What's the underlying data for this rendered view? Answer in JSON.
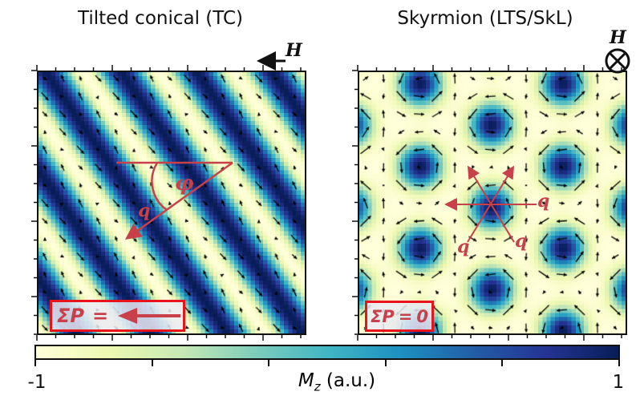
{
  "panels": {
    "left": {
      "title": "Tilted conical (TC)",
      "field_label": "H",
      "angle_label": "φ",
      "q_label": "q",
      "polarization": {
        "sum_label": "ΣP",
        "equals": "=",
        "direction": "left"
      }
    },
    "right": {
      "title": "Skyrmion (LTS/SkL)",
      "field_label": "H",
      "field_symbol": "⊗",
      "q_labels": [
        "q",
        "q",
        "q"
      ],
      "polarization": {
        "sum_label": "ΣP",
        "equals": "=",
        "value": "0"
      }
    }
  },
  "colorbar": {
    "label_symbol": "M",
    "label_subscript": "z",
    "label_unit": "(a.u.)",
    "min_label": "-1",
    "max_label": "1",
    "colormap": [
      "#ffffd9",
      "#edf8b1",
      "#c7e9b4",
      "#7fcdbb",
      "#41b6c4",
      "#1d91c0",
      "#225ea8",
      "#253494",
      "#081d58"
    ]
  },
  "colors": {
    "annotation_red": "#c8414a",
    "box_border": "#e8141c"
  }
}
